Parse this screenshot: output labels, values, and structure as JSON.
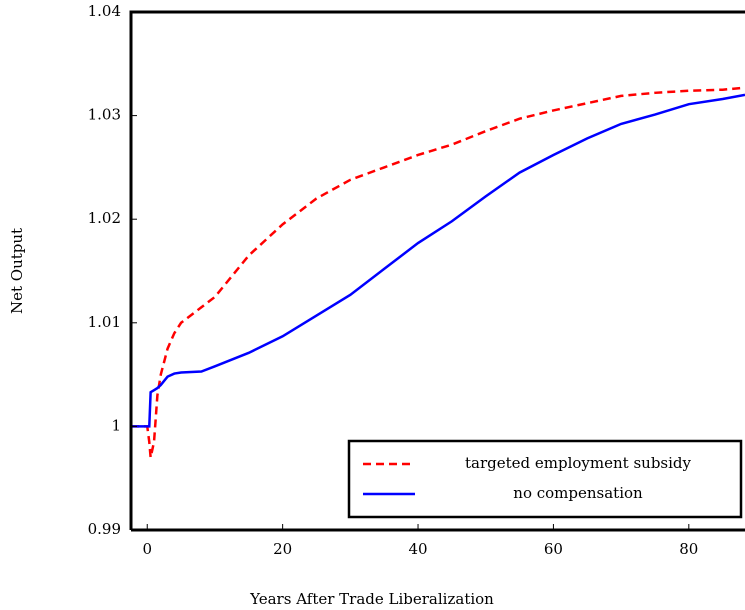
{
  "chart_data": {
    "type": "line",
    "x_label": "Years After Trade Liberalization",
    "y_label": "Net Output",
    "x": [
      -2.4,
      0,
      0.3,
      0.5,
      1,
      1.5,
      2,
      3,
      4,
      5,
      8,
      10,
      15,
      20,
      25,
      30,
      35,
      40,
      45,
      50,
      55,
      60,
      65,
      70,
      75,
      80,
      85,
      88.3
    ],
    "series": [
      {
        "name": "targeted employment subsidy",
        "color": "#ff0000",
        "dashed": true,
        "values": [
          1.0,
          1.0,
          0.9985,
          0.997,
          0.9985,
          1.003,
          1.005,
          1.0075,
          1.009,
          1.01,
          1.0115,
          1.0125,
          1.0165,
          1.0195,
          1.022,
          1.0238,
          1.025,
          1.0262,
          1.0272,
          1.0285,
          1.0297,
          1.0305,
          1.0312,
          1.0319,
          1.0322,
          1.0324,
          1.0325,
          1.0327
        ]
      },
      {
        "name": "no compensation",
        "color": "#0000ff",
        "dashed": false,
        "values": [
          1.0,
          1.0,
          1.0,
          1.0033,
          1.0035,
          1.0037,
          1.004,
          1.0048,
          1.0051,
          1.0052,
          1.0053,
          1.0058,
          1.0071,
          1.0087,
          1.0107,
          1.0127,
          1.0152,
          1.0177,
          1.0198,
          1.0222,
          1.0245,
          1.0262,
          1.0278,
          1.0292,
          1.0301,
          1.0311,
          1.0316,
          1.032
        ]
      }
    ],
    "xlim": [
      -2.4,
      88.3
    ],
    "xticks": [
      0,
      20,
      40,
      60,
      80
    ],
    "ylim": [
      0.99,
      1.04
    ],
    "yticks": [
      0.99,
      1,
      1.01,
      1.02,
      1.03,
      1.04
    ],
    "legend": "lower right"
  }
}
